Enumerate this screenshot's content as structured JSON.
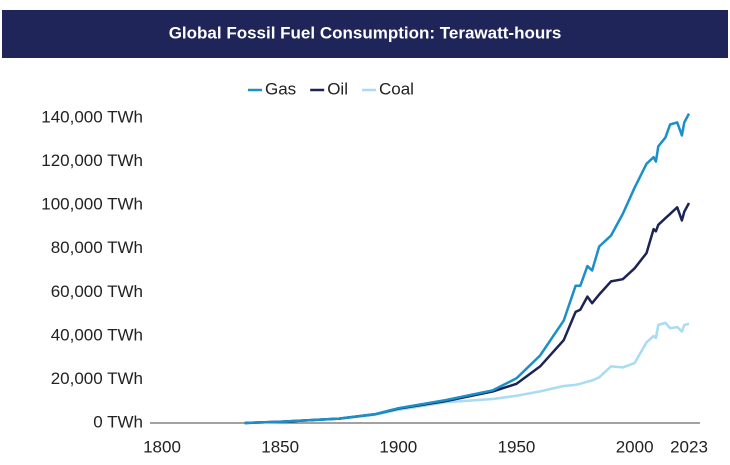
{
  "chart_data": {
    "type": "line",
    "title": "Global Fossil Fuel Consumption: Terawatt-hours",
    "x": [
      1835,
      1850,
      1875,
      1890,
      1900,
      1920,
      1940,
      1950,
      1960,
      1970,
      1975,
      1977,
      1980,
      1982,
      1985,
      1990,
      1995,
      2000,
      2005,
      2008,
      2009,
      2010,
      2013,
      2015,
      2018,
      2020,
      2021,
      2023
    ],
    "series": [
      {
        "name": "Gas",
        "color": "#1a8fc8",
        "values": [
          0,
          600,
          2000,
          4000,
          6800,
          10500,
          15000,
          20500,
          31000,
          47000,
          63000,
          63000,
          72000,
          70000,
          81000,
          86000,
          96000,
          108000,
          119000,
          122000,
          120000,
          127000,
          131000,
          137000,
          138000,
          132000,
          138000,
          142000
        ]
      },
      {
        "name": "Oil",
        "color": "#1b2455",
        "values": [
          0,
          600,
          2000,
          4000,
          6600,
          10000,
          14500,
          18000,
          26000,
          38000,
          51000,
          52000,
          58000,
          55000,
          59000,
          65000,
          66000,
          71000,
          78000,
          89000,
          88000,
          91000,
          94000,
          96000,
          99000,
          93000,
          97000,
          101000
        ]
      },
      {
        "name": "Coal",
        "color": "#a8dcf2",
        "values": [
          0,
          600,
          2000,
          3800,
          6000,
          9500,
          11000,
          12500,
          14500,
          17000,
          17500,
          18000,
          19000,
          19500,
          21000,
          26000,
          25500,
          27500,
          37000,
          40000,
          39000,
          45000,
          46000,
          43500,
          44000,
          42000,
          45000,
          45500
        ]
      }
    ],
    "xlim": [
      1800,
      2023
    ],
    "xticks": [
      1800,
      1850,
      1900,
      1950,
      2000,
      2023
    ],
    "ylim": [
      0,
      140000
    ],
    "yticks": [
      {
        "value": 0,
        "label": "0 TWh"
      },
      {
        "value": 20000,
        "label": "20,000 TWh"
      },
      {
        "value": 40000,
        "label": "40,000 TWh"
      },
      {
        "value": 60000,
        "label": "60,000 TWh"
      },
      {
        "value": 80000,
        "label": "80,000 TWh"
      },
      {
        "value": 100000,
        "label": "100,000 TWh"
      },
      {
        "value": 120000,
        "label": "120,000 TWh"
      },
      {
        "value": 140000,
        "label": "140,000 TWh"
      }
    ],
    "legend": "top"
  }
}
